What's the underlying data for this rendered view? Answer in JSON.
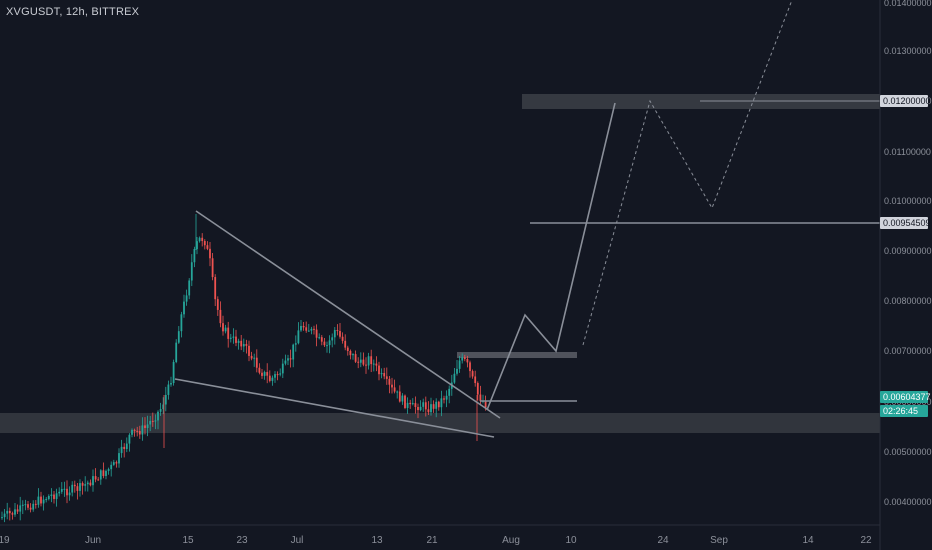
{
  "symbol_title": "XVGUSDT, 12h, BITTREX",
  "chart_data": {
    "type": "candlestick",
    "symbol": "XVGUSDT",
    "interval": "12h",
    "exchange": "BITTREX",
    "y_ticks": [
      "0.01400000",
      "0.01300000",
      "0.01200000",
      "0.01100000",
      "0.01000000",
      "0.00900000",
      "0.00800000",
      "0.00700000",
      "0.00600000",
      "0.00500000",
      "0.00400000"
    ],
    "x_ticks": [
      "19",
      "Jun",
      "15",
      "23",
      "Jul",
      "13",
      "21",
      "Aug",
      "10",
      "24",
      "Sep",
      "14",
      "22"
    ],
    "price_tags": [
      {
        "value": "0.01200000",
        "style": "light"
      },
      {
        "value": "0.00954509",
        "style": "light"
      },
      {
        "value": "0.00604377",
        "style": "green"
      },
      {
        "value": "02:26:45",
        "style": "green"
      }
    ],
    "colors": {
      "up": "#26a69a",
      "down": "#ef5350",
      "background": "#131722",
      "drawing": "#8a8f99",
      "zone": "#3a3d45"
    }
  }
}
